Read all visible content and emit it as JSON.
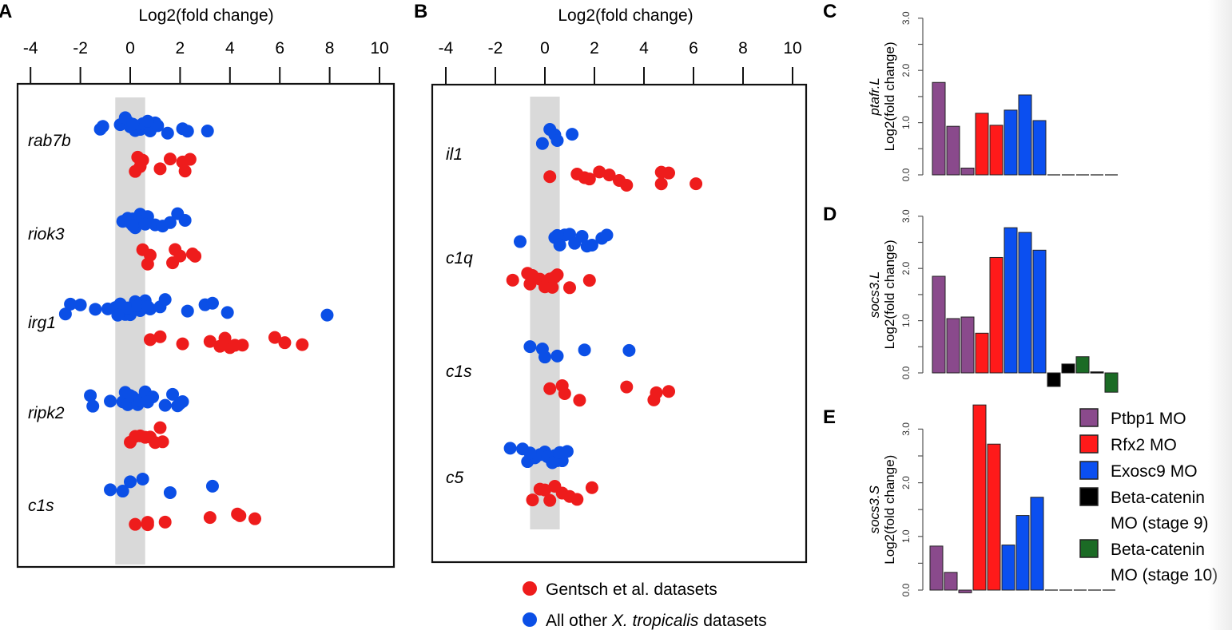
{
  "colors": {
    "gentsch": "#ee1c1c",
    "other": "#0b4fe6",
    "band": "#d9d9d9",
    "ptbp1": "#8a4a8c",
    "rfx2": "#ff1a1a",
    "exosc9": "#0b4ff0",
    "betacat9": "#000000",
    "betacat10": "#1b6b25"
  },
  "chart_data": [
    {
      "panel": "A",
      "type": "scatter",
      "title": "Log2(fold change)",
      "xlabel": "Log2(fold change)",
      "xlim": [
        -4,
        10
      ],
      "xticks": [
        "-4",
        "-2",
        "0",
        "2",
        "4",
        "6",
        "8",
        "10"
      ],
      "band": [
        -0.6,
        0.6
      ],
      "genes": [
        {
          "name": "rab7b",
          "other": [
            -1.2,
            -1.1,
            -0.4,
            -0.1,
            0.2,
            0.4,
            0.6,
            0.9,
            1.1,
            -0.2,
            0.0,
            0.3,
            0.5,
            0.8,
            1.0,
            0.1,
            0.7,
            1.5,
            2.1,
            2.3,
            3.1
          ],
          "gentsch": [
            0.3,
            0.4,
            0.2,
            0.5,
            1.2,
            1.6,
            2.2,
            2.4,
            2.1
          ]
        },
        {
          "name": "riok3",
          "other": [
            -0.3,
            -0.1,
            0.1,
            0.3,
            0.4,
            0.0,
            0.2,
            0.5,
            0.7,
            1.0,
            1.3,
            1.6,
            1.9,
            2.2,
            0.1,
            0.6
          ],
          "gentsch": [
            0.5,
            0.8,
            0.7,
            1.7,
            2.0,
            2.5,
            2.6,
            1.8
          ]
        },
        {
          "name": "irg1",
          "other": [
            -2.6,
            -2.4,
            -2.0,
            -1.4,
            -0.9,
            -0.6,
            -0.4,
            -0.2,
            0.0,
            0.2,
            0.4,
            0.6,
            -0.5,
            -0.1,
            0.3,
            0.8,
            0.7,
            1.2,
            1.4,
            2.3,
            3.0,
            3.3,
            3.9,
            7.9
          ],
          "gentsch": [
            0.8,
            1.2,
            2.1,
            3.2,
            3.6,
            4.0,
            4.2,
            4.5,
            5.8,
            6.2,
            6.9,
            3.8
          ]
        },
        {
          "name": "ripk2",
          "other": [
            -1.6,
            -1.5,
            -0.8,
            -0.3,
            -0.1,
            0.1,
            0.3,
            0.5,
            0.0,
            0.4,
            0.6,
            0.9,
            1.4,
            1.7,
            1.9,
            2.1,
            2.0,
            -0.2,
            0.7
          ],
          "gentsch": [
            0.0,
            0.2,
            0.4,
            0.6,
            0.8,
            1.0,
            1.3,
            1.2
          ]
        },
        {
          "name": "c1s",
          "other": [
            -0.8,
            -0.3,
            0.0,
            0.5,
            1.6,
            3.3
          ],
          "gentsch": [
            0.2,
            0.7,
            0.7,
            1.4,
            3.2,
            4.4,
            4.3,
            5.0
          ]
        }
      ]
    },
    {
      "panel": "B",
      "type": "scatter",
      "xlabel": "Log2(fold change)",
      "xlim": [
        -4,
        10
      ],
      "xticks": [
        "-4",
        "-2",
        "0",
        "2",
        "4",
        "6",
        "8",
        "10"
      ],
      "band": [
        -0.6,
        0.6
      ],
      "genes": [
        {
          "name": "il1",
          "other": [
            -0.1,
            0.2,
            0.4,
            0.5,
            1.1
          ],
          "gentsch": [
            0.2,
            1.3,
            1.6,
            1.8,
            2.2,
            2.6,
            3.0,
            3.3,
            4.7,
            4.7,
            5.0,
            6.1
          ]
        },
        {
          "name": "c1q",
          "other": [
            -1.0,
            0.4,
            0.5,
            0.8,
            1.0,
            1.2,
            1.5,
            1.7,
            1.9,
            2.3,
            2.5,
            0.6
          ],
          "gentsch": [
            -1.3,
            -0.7,
            -0.5,
            -0.2,
            0.0,
            0.2,
            0.4,
            0.5,
            1.0,
            1.8,
            -0.6,
            0.3
          ]
        },
        {
          "name": "c1s",
          "other": [
            -0.6,
            -0.1,
            0.0,
            0.5,
            1.6,
            3.4
          ],
          "gentsch": [
            0.2,
            0.7,
            0.8,
            1.4,
            3.3,
            4.5,
            4.4,
            5.0
          ]
        },
        {
          "name": "c5",
          "other": [
            -1.4,
            -0.9,
            -0.7,
            -0.4,
            -0.2,
            0.0,
            0.2,
            0.4,
            0.5,
            0.7,
            0.9,
            0.1,
            0.3,
            -0.6,
            0.6
          ],
          "gentsch": [
            -0.5,
            -0.2,
            0.0,
            0.2,
            0.7,
            1.0,
            1.3,
            1.9,
            0.4
          ]
        }
      ]
    },
    {
      "panel": "C",
      "type": "bar",
      "ylabel_gene": "ptafr.L",
      "ylabel": "Log2(fold change)",
      "ylim": [
        -0.4,
        3.0
      ],
      "yticks": [
        "0.0",
        "1.0",
        "2.0",
        "3.0"
      ],
      "values": [
        1.77,
        0.93,
        0.13,
        1.18,
        0.95,
        1.24,
        1.53,
        1.04,
        0,
        0,
        0,
        0,
        0
      ],
      "groups": [
        "ptbp1",
        "ptbp1",
        "ptbp1",
        "rfx2",
        "rfx2",
        "exosc9",
        "exosc9",
        "exosc9",
        "betacat9",
        "betacat9",
        "betacat10",
        "betacat9",
        "betacat10"
      ]
    },
    {
      "panel": "D",
      "type": "bar",
      "ylabel_gene": "socs3.L",
      "ylabel": "Log2(fold change)",
      "ylim": [
        -0.4,
        3.0
      ],
      "yticks": [
        "0.0",
        "1.0",
        "2.0",
        "3.0"
      ],
      "values": [
        1.85,
        1.04,
        1.07,
        0.76,
        2.21,
        2.78,
        2.69,
        2.35,
        -0.26,
        0.17,
        0.31,
        0.02,
        -0.37
      ],
      "groups": [
        "ptbp1",
        "ptbp1",
        "ptbp1",
        "rfx2",
        "rfx2",
        "exosc9",
        "exosc9",
        "exosc9",
        "betacat9",
        "betacat9",
        "betacat10",
        "betacat9",
        "betacat10"
      ]
    },
    {
      "panel": "E",
      "type": "bar",
      "ylabel_gene": "socs3.S",
      "ylabel": "Log2(fold change)",
      "ylim": [
        -0.2,
        3.5
      ],
      "yticks": [
        "0.0",
        "1.0",
        "2.0",
        "3.0"
      ],
      "values": [
        0.82,
        0.33,
        -0.05,
        3.45,
        2.72,
        0.84,
        1.39,
        1.73,
        0,
        0,
        0,
        0,
        0
      ],
      "groups": [
        "ptbp1",
        "ptbp1",
        "ptbp1",
        "rfx2",
        "rfx2",
        "exosc9",
        "exosc9",
        "exosc9",
        "betacat9",
        "betacat9",
        "betacat10",
        "betacat9",
        "betacat10"
      ]
    }
  ],
  "labels": {
    "A": "A",
    "B": "B",
    "C": "C",
    "D": "D",
    "E": "E",
    "axis_title": "Log2(fold change)"
  },
  "scatter_legend": [
    {
      "key": "gentsch",
      "label": "Gentsch et al. datasets"
    },
    {
      "key": "other",
      "label_prefix": "All other ",
      "label_italic": "X. tropicalis",
      "label_suffix": " datasets"
    }
  ],
  "bar_legend": [
    {
      "key": "ptbp1",
      "lines": [
        "Ptbp1 MO"
      ]
    },
    {
      "key": "rfx2",
      "lines": [
        "Rfx2 MO"
      ]
    },
    {
      "key": "exosc9",
      "lines": [
        "Exosc9 MO"
      ]
    },
    {
      "key": "betacat9",
      "lines": [
        "Beta-catenin",
        "MO (stage 9)"
      ]
    },
    {
      "key": "betacat10",
      "lines": [
        "Beta-catenin",
        "MO (stage 10)"
      ]
    }
  ]
}
